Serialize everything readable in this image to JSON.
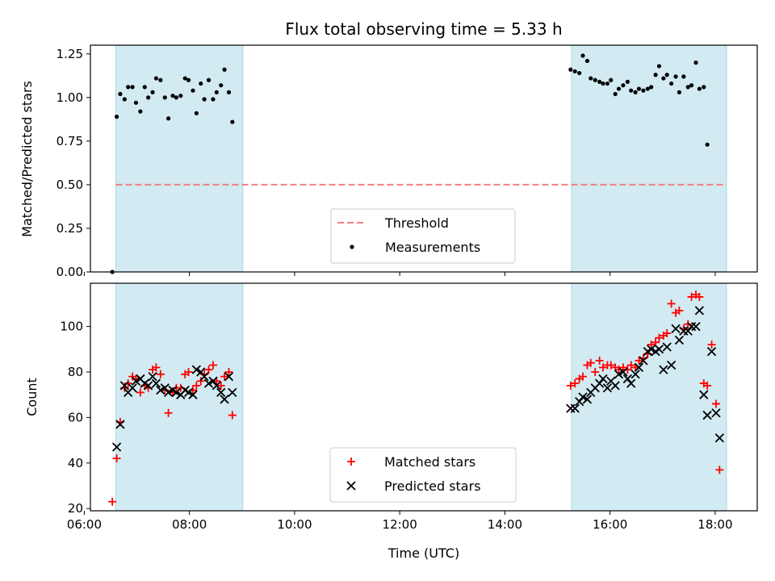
{
  "chart_data": [
    {
      "type": "scatter",
      "title": "Flux total observing time = 5.33 h",
      "xlabel": "",
      "ylabel": "Matched/Predicted stars",
      "xlim": [
        "06:07",
        "18:48"
      ],
      "ylim": [
        0,
        1.3
      ],
      "yticks": [
        0.0,
        0.25,
        0.5,
        0.75,
        1.0,
        1.25
      ],
      "ytick_labels": [
        "0.00",
        "0.25",
        "0.50",
        "0.75",
        "1.00",
        "1.25"
      ],
      "legend": {
        "placement": "lower-center",
        "entries": [
          "Threshold",
          "Measurements"
        ]
      },
      "shaded_intervals": [
        [
          "06:36",
          "09:01"
        ],
        [
          "15:16",
          "18:13"
        ]
      ],
      "shade_color": "#add8e6",
      "threshold": {
        "name": "Threshold",
        "y": 0.5,
        "x_range": [
          "06:36",
          "18:13"
        ],
        "color": "#f08080",
        "style": "dashed"
      },
      "series": [
        {
          "name": "Measurements",
          "marker": "dot",
          "color": "#000000",
          "points": [
            [
              "06:32",
              0.0
            ],
            [
              "06:37",
              0.89
            ],
            [
              "06:41",
              1.02
            ],
            [
              "06:46",
              0.99
            ],
            [
              "06:50",
              1.06
            ],
            [
              "06:55",
              1.06
            ],
            [
              "06:59",
              0.97
            ],
            [
              "07:04",
              0.92
            ],
            [
              "07:09",
              1.06
            ],
            [
              "07:13",
              1.0
            ],
            [
              "07:18",
              1.03
            ],
            [
              "07:22",
              1.11
            ],
            [
              "07:27",
              1.1
            ],
            [
              "07:32",
              1.0
            ],
            [
              "07:36",
              0.88
            ],
            [
              "07:41",
              1.01
            ],
            [
              "07:45",
              1.0
            ],
            [
              "07:50",
              1.01
            ],
            [
              "07:55",
              1.11
            ],
            [
              "07:59",
              1.1
            ],
            [
              "08:04",
              1.04
            ],
            [
              "08:08",
              0.91
            ],
            [
              "08:13",
              1.08
            ],
            [
              "08:17",
              0.99
            ],
            [
              "08:22",
              1.1
            ],
            [
              "08:27",
              0.99
            ],
            [
              "08:31",
              1.03
            ],
            [
              "08:36",
              1.07
            ],
            [
              "08:40",
              1.16
            ],
            [
              "08:45",
              1.03
            ],
            [
              "08:49",
              0.86
            ],
            [
              "15:15",
              1.16
            ],
            [
              "15:20",
              1.15
            ],
            [
              "15:25",
              1.14
            ],
            [
              "15:29",
              1.24
            ],
            [
              "15:34",
              1.21
            ],
            [
              "15:38",
              1.11
            ],
            [
              "15:43",
              1.1
            ],
            [
              "15:48",
              1.09
            ],
            [
              "15:52",
              1.08
            ],
            [
              "15:57",
              1.08
            ],
            [
              "16:01",
              1.1
            ],
            [
              "16:06",
              1.02
            ],
            [
              "16:10",
              1.05
            ],
            [
              "16:15",
              1.07
            ],
            [
              "16:20",
              1.09
            ],
            [
              "16:24",
              1.04
            ],
            [
              "16:29",
              1.03
            ],
            [
              "16:33",
              1.05
            ],
            [
              "16:38",
              1.04
            ],
            [
              "16:43",
              1.05
            ],
            [
              "16:47",
              1.06
            ],
            [
              "16:52",
              1.13
            ],
            [
              "16:56",
              1.18
            ],
            [
              "17:01",
              1.11
            ],
            [
              "17:05",
              1.13
            ],
            [
              "17:10",
              1.08
            ],
            [
              "17:15",
              1.12
            ],
            [
              "17:19",
              1.03
            ],
            [
              "17:24",
              1.12
            ],
            [
              "17:29",
              1.06
            ],
            [
              "17:33",
              1.07
            ],
            [
              "17:38",
              1.2
            ],
            [
              "17:42",
              1.05
            ],
            [
              "17:47",
              1.06
            ],
            [
              "17:51",
              0.73
            ]
          ]
        }
      ]
    },
    {
      "type": "scatter",
      "title": "",
      "xlabel": "Time (UTC)",
      "ylabel": "Count",
      "xlim": [
        "06:07",
        "18:48"
      ],
      "ylim": [
        19,
        119
      ],
      "yticks": [
        20,
        40,
        60,
        80,
        100
      ],
      "ytick_labels": [
        "20",
        "40",
        "60",
        "80",
        "100"
      ],
      "xticks": [
        "06:00",
        "08:00",
        "10:00",
        "12:00",
        "14:00",
        "16:00",
        "18:00"
      ],
      "xtick_labels": [
        "06:00",
        "08:00",
        "10:00",
        "12:00",
        "14:00",
        "16:00",
        "18:00"
      ],
      "legend": {
        "placement": "lower-center",
        "entries": [
          "Matched stars",
          "Predicted stars"
        ]
      },
      "shaded_intervals": [
        [
          "06:36",
          "09:01"
        ],
        [
          "15:16",
          "18:13"
        ]
      ],
      "shade_color": "#add8e6",
      "series": [
        {
          "name": "Matched stars",
          "marker": "plus",
          "color": "#ff0000",
          "points": [
            [
              "06:32",
              23
            ],
            [
              "06:37",
              42
            ],
            [
              "06:41",
              58
            ],
            [
              "06:46",
              73
            ],
            [
              "06:50",
              75
            ],
            [
              "06:55",
              78
            ],
            [
              "06:59",
              77
            ],
            [
              "07:04",
              71
            ],
            [
              "07:09",
              74
            ],
            [
              "07:13",
              73
            ],
            [
              "07:18",
              81
            ],
            [
              "07:22",
              82
            ],
            [
              "07:27",
              79
            ],
            [
              "07:32",
              72
            ],
            [
              "07:36",
              62
            ],
            [
              "07:41",
              71
            ],
            [
              "07:45",
              73
            ],
            [
              "07:50",
              73
            ],
            [
              "07:55",
              79
            ],
            [
              "07:59",
              80
            ],
            [
              "08:04",
              72
            ],
            [
              "08:08",
              74
            ],
            [
              "08:13",
              76
            ],
            [
              "08:17",
              79
            ],
            [
              "08:22",
              81
            ],
            [
              "08:27",
              83
            ],
            [
              "08:31",
              76
            ],
            [
              "08:36",
              74
            ],
            [
              "08:40",
              78
            ],
            [
              "08:45",
              80
            ],
            [
              "08:49",
              61
            ],
            [
              "15:15",
              74
            ],
            [
              "15:20",
              75
            ],
            [
              "15:25",
              77
            ],
            [
              "15:29",
              78
            ],
            [
              "15:34",
              83
            ],
            [
              "15:38",
              84
            ],
            [
              "15:43",
              80
            ],
            [
              "15:48",
              85
            ],
            [
              "15:52",
              82
            ],
            [
              "15:57",
              83
            ],
            [
              "16:01",
              83
            ],
            [
              "16:06",
              82
            ],
            [
              "16:10",
              81
            ],
            [
              "16:15",
              82
            ],
            [
              "16:20",
              81
            ],
            [
              "16:24",
              83
            ],
            [
              "16:29",
              82
            ],
            [
              "16:33",
              85
            ],
            [
              "16:38",
              86
            ],
            [
              "16:43",
              88
            ],
            [
              "16:47",
              92
            ],
            [
              "16:52",
              93
            ],
            [
              "16:56",
              95
            ],
            [
              "17:01",
              96
            ],
            [
              "17:05",
              97
            ],
            [
              "17:10",
              110
            ],
            [
              "17:15",
              106
            ],
            [
              "17:19",
              107
            ],
            [
              "17:24",
              99
            ],
            [
              "17:29",
              101
            ],
            [
              "17:33",
              113
            ],
            [
              "17:38",
              114
            ],
            [
              "17:42",
              113
            ],
            [
              "17:47",
              75
            ],
            [
              "17:51",
              74
            ],
            [
              "17:56",
              92
            ],
            [
              "18:01",
              66
            ],
            [
              "18:05",
              37
            ]
          ]
        },
        {
          "name": "Predicted stars",
          "marker": "x",
          "color": "#000000",
          "points": [
            [
              "06:37",
              47
            ],
            [
              "06:41",
              57
            ],
            [
              "06:46",
              74
            ],
            [
              "06:50",
              71
            ],
            [
              "06:55",
              73
            ],
            [
              "06:59",
              76
            ],
            [
              "07:04",
              77
            ],
            [
              "07:09",
              75
            ],
            [
              "07:13",
              74
            ],
            [
              "07:18",
              78
            ],
            [
              "07:22",
              75
            ],
            [
              "07:27",
              72
            ],
            [
              "07:32",
              73
            ],
            [
              "07:36",
              71
            ],
            [
              "07:41",
              72
            ],
            [
              "07:45",
              71
            ],
            [
              "07:50",
              70
            ],
            [
              "07:55",
              72
            ],
            [
              "07:59",
              71
            ],
            [
              "08:04",
              70
            ],
            [
              "08:08",
              81
            ],
            [
              "08:13",
              80
            ],
            [
              "08:17",
              78
            ],
            [
              "08:22",
              75
            ],
            [
              "08:27",
              76
            ],
            [
              "08:31",
              74
            ],
            [
              "08:36",
              71
            ],
            [
              "08:40",
              68
            ],
            [
              "08:45",
              78
            ],
            [
              "08:49",
              71
            ],
            [
              "15:15",
              64
            ],
            [
              "15:20",
              64
            ],
            [
              "15:25",
              67
            ],
            [
              "15:29",
              69
            ],
            [
              "15:34",
              68
            ],
            [
              "15:38",
              71
            ],
            [
              "15:43",
              73
            ],
            [
              "15:48",
              75
            ],
            [
              "15:52",
              77
            ],
            [
              "15:57",
              73
            ],
            [
              "16:01",
              76
            ],
            [
              "16:06",
              74
            ],
            [
              "16:10",
              79
            ],
            [
              "16:15",
              80
            ],
            [
              "16:20",
              77
            ],
            [
              "16:24",
              75
            ],
            [
              "16:29",
              79
            ],
            [
              "16:33",
              82
            ],
            [
              "16:38",
              85
            ],
            [
              "16:43",
              89
            ],
            [
              "16:47",
              90
            ],
            [
              "16:52",
              89
            ],
            [
              "16:56",
              90
            ],
            [
              "17:01",
              81
            ],
            [
              "17:05",
              91
            ],
            [
              "17:10",
              83
            ],
            [
              "17:15",
              99
            ],
            [
              "17:19",
              94
            ],
            [
              "17:24",
              98
            ],
            [
              "17:29",
              98
            ],
            [
              "17:33",
              100
            ],
            [
              "17:38",
              100
            ],
            [
              "17:42",
              107
            ],
            [
              "17:47",
              70
            ],
            [
              "17:51",
              61
            ],
            [
              "17:56",
              89
            ],
            [
              "18:01",
              62
            ],
            [
              "18:05",
              51
            ]
          ]
        }
      ]
    }
  ]
}
